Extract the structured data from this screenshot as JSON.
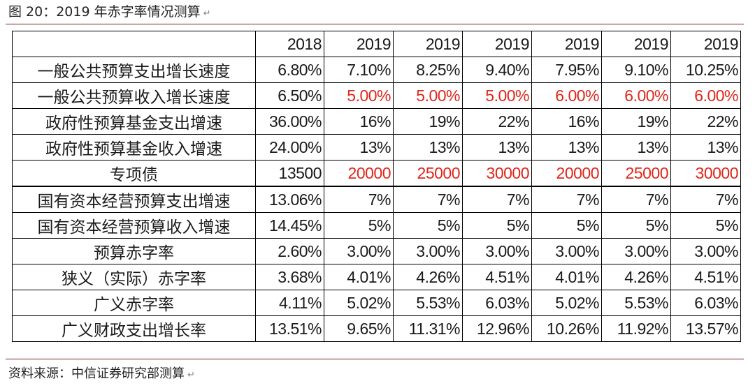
{
  "figure_title": "图 20：2019 年赤字率情况测算",
  "paragraph_mark": "↵",
  "source_note": "资料来源：中信证券研究部测算",
  "colors": {
    "highlight_red": "#e0261b",
    "rule": "#7a1f1f"
  },
  "table": {
    "header": [
      "",
      "2018",
      "2019",
      "2019",
      "2019",
      "2019",
      "2019",
      "2019"
    ],
    "rows": [
      {
        "label": "一般公共预算支出增长速度",
        "cells": [
          "6.80%",
          "7.10%",
          "8.25%",
          "9.40%",
          "7.95%",
          "9.10%",
          "10.25%"
        ],
        "red": [
          false,
          false,
          false,
          false,
          false,
          false,
          false
        ]
      },
      {
        "label": "一般公共预算收入增长速度",
        "cells": [
          "6.50%",
          "5.00%",
          "5.00%",
          "5.00%",
          "6.00%",
          "6.00%",
          "6.00%"
        ],
        "red": [
          false,
          true,
          true,
          true,
          true,
          true,
          true
        ]
      },
      {
        "label": "政府性预算基金支出增速",
        "cells": [
          "36.00%",
          "16%",
          "19%",
          "22%",
          "16%",
          "19%",
          "22%"
        ],
        "red": [
          false,
          false,
          false,
          false,
          false,
          false,
          false
        ]
      },
      {
        "label": "政府性预算基金收入增速",
        "cells": [
          "24.00%",
          "13%",
          "13%",
          "13%",
          "13%",
          "13%",
          "13%"
        ],
        "red": [
          false,
          false,
          false,
          false,
          false,
          false,
          false
        ]
      },
      {
        "label": "专项债",
        "cells": [
          "13500",
          "20000",
          "25000",
          "30000",
          "20000",
          "25000",
          "30000"
        ],
        "red": [
          false,
          true,
          true,
          true,
          true,
          true,
          true
        ]
      },
      {
        "label": "国有资本经营预算支出增速",
        "cells": [
          "13.06%",
          "7%",
          "7%",
          "7%",
          "7%",
          "7%",
          "7%"
        ],
        "red": [
          false,
          false,
          false,
          false,
          false,
          false,
          false
        ]
      },
      {
        "label": "国有资本经营预算收入增速",
        "cells": [
          "14.45%",
          "5%",
          "5%",
          "5%",
          "5%",
          "5%",
          "5%"
        ],
        "red": [
          false,
          false,
          false,
          false,
          false,
          false,
          false
        ]
      },
      {
        "label": "预算赤字率",
        "cells": [
          "2.60%",
          "3.00%",
          "3.00%",
          "3.00%",
          "3.00%",
          "3.00%",
          "3.00%"
        ],
        "red": [
          false,
          false,
          false,
          false,
          false,
          false,
          false
        ]
      },
      {
        "label": "狭义（实际）赤字率",
        "cells": [
          "3.68%",
          "4.01%",
          "4.26%",
          "4.51%",
          "4.01%",
          "4.26%",
          "4.51%"
        ],
        "red": [
          false,
          false,
          false,
          false,
          false,
          false,
          false
        ]
      },
      {
        "label": "广义赤字率",
        "cells": [
          "4.11%",
          "5.02%",
          "5.53%",
          "6.03%",
          "5.02%",
          "5.53%",
          "6.03%"
        ],
        "red": [
          false,
          false,
          false,
          false,
          false,
          false,
          false
        ]
      },
      {
        "label": "广义财政支出增长率",
        "cells": [
          "13.51%",
          "9.65%",
          "11.31%",
          "12.96%",
          "10.26%",
          "11.92%",
          "13.57%"
        ],
        "red": [
          false,
          false,
          false,
          false,
          false,
          false,
          false
        ]
      }
    ]
  }
}
